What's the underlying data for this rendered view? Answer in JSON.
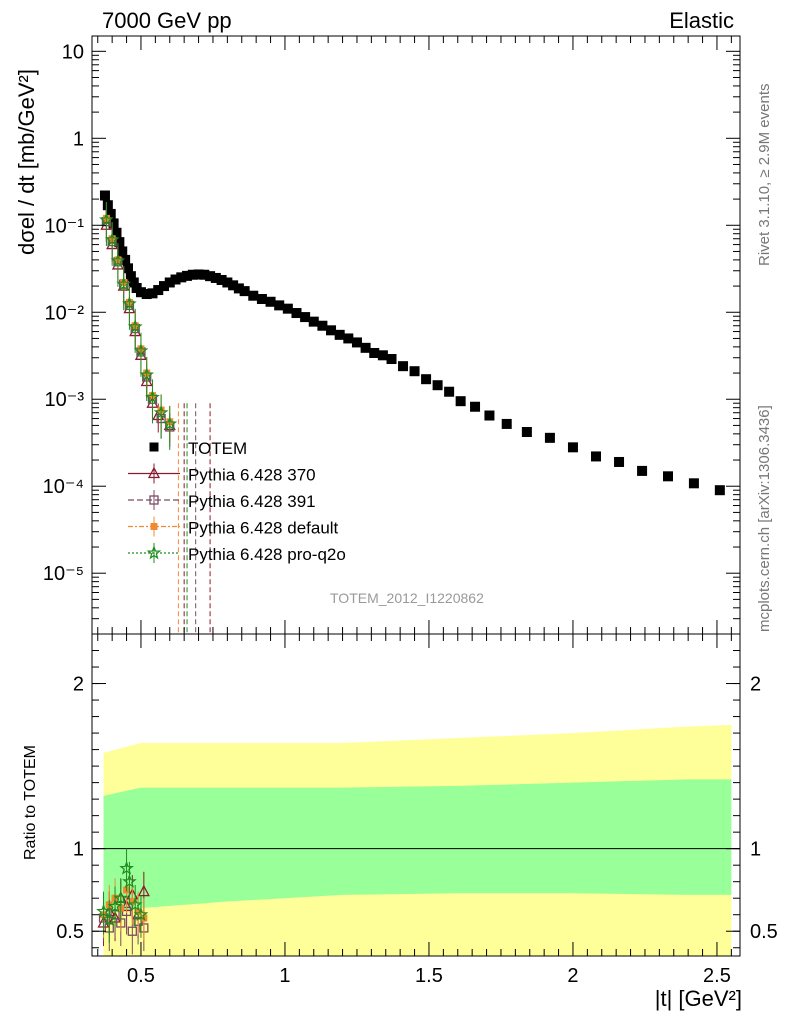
{
  "header": {
    "left": "7000 GeV pp",
    "right": "Elastic"
  },
  "side_text": {
    "rivet": "Rivet 3.1.10, ≥ 2.9M events",
    "mcplots": "mcplots.cern.ch [arXiv:1306.3436]"
  },
  "watermark": "TOTEM_2012_I1220862",
  "chart_data": [
    {
      "type": "scatter",
      "panel": "main",
      "ylabel": "dσel / dt [mb/GeV²]",
      "yscale": "log",
      "ylim": [
        2e-06,
        15
      ],
      "xlim": [
        0.33,
        2.58
      ],
      "y_tick_labels": [
        "10⁻⁵",
        "10⁻⁴",
        "10⁻³",
        "10⁻²",
        "10⁻¹",
        "1",
        "10"
      ],
      "legend_position": "center-left",
      "series": [
        {
          "name": "TOTEM",
          "color": "#000000",
          "marker": "square",
          "points": [
            [
              0.375,
              0.22
            ],
            [
              0.385,
              0.17
            ],
            [
              0.395,
              0.135
            ],
            [
              0.405,
              0.105
            ],
            [
              0.415,
              0.082
            ],
            [
              0.425,
              0.064
            ],
            [
              0.435,
              0.05
            ],
            [
              0.445,
              0.04
            ],
            [
              0.455,
              0.032
            ],
            [
              0.465,
              0.026
            ],
            [
              0.475,
              0.022
            ],
            [
              0.485,
              0.019
            ],
            [
              0.5,
              0.017
            ],
            [
              0.52,
              0.0162
            ],
            [
              0.54,
              0.0165
            ],
            [
              0.56,
              0.018
            ],
            [
              0.58,
              0.02
            ],
            [
              0.6,
              0.022
            ],
            [
              0.62,
              0.0238
            ],
            [
              0.64,
              0.0252
            ],
            [
              0.66,
              0.0262
            ],
            [
              0.68,
              0.027
            ],
            [
              0.7,
              0.0272
            ],
            [
              0.72,
              0.027
            ],
            [
              0.74,
              0.026
            ],
            [
              0.76,
              0.0248
            ],
            [
              0.78,
              0.0235
            ],
            [
              0.8,
              0.022
            ],
            [
              0.82,
              0.0204
            ],
            [
              0.84,
              0.0188
            ],
            [
              0.86,
              0.0175
            ],
            [
              0.89,
              0.0155
            ],
            [
              0.92,
              0.0142
            ],
            [
              0.95,
              0.0132
            ],
            [
              0.98,
              0.012
            ],
            [
              1.01,
              0.011
            ],
            [
              1.04,
              0.0098
            ],
            [
              1.07,
              0.0088
            ],
            [
              1.1,
              0.0078
            ],
            [
              1.13,
              0.007
            ],
            [
              1.16,
              0.0062
            ],
            [
              1.19,
              0.0055
            ],
            [
              1.22,
              0.005
            ],
            [
              1.25,
              0.0045
            ],
            [
              1.28,
              0.0039
            ],
            [
              1.31,
              0.0034
            ],
            [
              1.34,
              0.0032
            ],
            [
              1.37,
              0.0029
            ],
            [
              1.41,
              0.0024
            ],
            [
              1.45,
              0.0021
            ],
            [
              1.49,
              0.0017
            ],
            [
              1.53,
              0.00145
            ],
            [
              1.57,
              0.00122
            ],
            [
              1.61,
              0.00095
            ],
            [
              1.66,
              0.00082
            ],
            [
              1.71,
              0.00065
            ],
            [
              1.77,
              0.00052
            ],
            [
              1.84,
              0.00042
            ],
            [
              1.92,
              0.00036
            ],
            [
              2.0,
              0.00028
            ],
            [
              2.08,
              0.00022
            ],
            [
              2.16,
              0.00019
            ],
            [
              2.24,
              0.00015
            ],
            [
              2.33,
              0.00013
            ],
            [
              2.42,
              0.000108
            ],
            [
              2.51,
              9e-05
            ]
          ]
        },
        {
          "name": "Pythia 6.428 370",
          "color": "#8b1a2b",
          "marker": "triangle",
          "points": [
            [
              0.38,
              0.1
            ],
            [
              0.4,
              0.06
            ],
            [
              0.42,
              0.035
            ],
            [
              0.44,
              0.02
            ],
            [
              0.46,
              0.011
            ],
            [
              0.48,
              0.006
            ],
            [
              0.5,
              0.0032
            ],
            [
              0.52,
              0.0016
            ],
            [
              0.54,
              0.0009
            ],
            [
              0.56,
              0.00065
            ],
            [
              0.6,
              0.0005
            ]
          ]
        },
        {
          "name": "Pythia 6.428 391",
          "color": "#7b4a66",
          "marker": "open-square",
          "points": [
            [
              0.38,
              0.11
            ],
            [
              0.4,
              0.065
            ],
            [
              0.42,
              0.038
            ],
            [
              0.44,
              0.021
            ],
            [
              0.46,
              0.012
            ],
            [
              0.48,
              0.0065
            ],
            [
              0.5,
              0.0035
            ],
            [
              0.52,
              0.0018
            ],
            [
              0.54,
              0.001
            ],
            [
              0.57,
              0.0006
            ],
            [
              0.6,
              0.00048
            ]
          ]
        },
        {
          "name": "Pythia 6.428 default",
          "color": "#f08a30",
          "marker": "filled-square",
          "points": [
            [
              0.38,
              0.12
            ],
            [
              0.4,
              0.07
            ],
            [
              0.42,
              0.04
            ],
            [
              0.44,
              0.022
            ],
            [
              0.46,
              0.013
            ],
            [
              0.48,
              0.007
            ],
            [
              0.5,
              0.0038
            ],
            [
              0.52,
              0.002
            ],
            [
              0.54,
              0.0011
            ],
            [
              0.57,
              0.00075
            ],
            [
              0.6,
              0.00055
            ]
          ]
        },
        {
          "name": "Pythia 6.428 pro-q2o",
          "color": "#1e8c1e",
          "marker": "star",
          "points": [
            [
              0.38,
              0.115
            ],
            [
              0.4,
              0.068
            ],
            [
              0.42,
              0.039
            ],
            [
              0.44,
              0.021
            ],
            [
              0.46,
              0.0125
            ],
            [
              0.48,
              0.0068
            ],
            [
              0.5,
              0.0036
            ],
            [
              0.52,
              0.0019
            ],
            [
              0.54,
              0.00105
            ],
            [
              0.57,
              0.0007
            ],
            [
              0.6,
              0.00052
            ]
          ]
        }
      ]
    },
    {
      "type": "area",
      "panel": "ratio",
      "ylabel": "Ratio to TOTEM",
      "xlabel": "|t| [GeV²]",
      "xlim": [
        0.33,
        2.58
      ],
      "ylim": [
        0.35,
        2.3
      ],
      "x_tick_labels": [
        "0.5",
        "1",
        "1.5",
        "2",
        "2.5"
      ],
      "y_tick_labels": [
        "0.5",
        "1",
        "2"
      ],
      "reference_line": 1,
      "bands": [
        {
          "name": "outer",
          "color": "#ffff99",
          "x": [
            0.37,
            0.5,
            0.8,
            1.2,
            1.6,
            2.0,
            2.4,
            2.55
          ],
          "low": [
            0.35,
            0.35,
            0.35,
            0.35,
            0.35,
            0.35,
            0.35,
            0.35
          ],
          "high": [
            1.58,
            1.64,
            1.64,
            1.64,
            1.67,
            1.7,
            1.74,
            1.75
          ]
        },
        {
          "name": "inner",
          "color": "#99ff99",
          "x": [
            0.37,
            0.5,
            0.8,
            1.2,
            1.6,
            2.0,
            2.4,
            2.55
          ],
          "low": [
            0.6,
            0.64,
            0.68,
            0.72,
            0.73,
            0.73,
            0.72,
            0.72
          ],
          "high": [
            1.32,
            1.37,
            1.37,
            1.37,
            1.38,
            1.4,
            1.42,
            1.42
          ]
        }
      ],
      "series": [
        {
          "name": "Pythia 6.428 370",
          "color": "#8b1a2b",
          "marker": "triangle",
          "points": [
            [
              0.37,
              0.55
            ],
            [
              0.39,
              0.62
            ],
            [
              0.41,
              0.58
            ],
            [
              0.43,
              0.7
            ],
            [
              0.45,
              0.65
            ],
            [
              0.47,
              0.72
            ],
            [
              0.49,
              0.6
            ],
            [
              0.51,
              0.74
            ]
          ]
        },
        {
          "name": "Pythia 6.428 391",
          "color": "#7b4a66",
          "marker": "open-square",
          "points": [
            [
              0.37,
              0.58
            ],
            [
              0.39,
              0.52
            ],
            [
              0.41,
              0.6
            ],
            [
              0.43,
              0.55
            ],
            [
              0.45,
              0.62
            ],
            [
              0.47,
              0.5
            ],
            [
              0.49,
              0.56
            ],
            [
              0.51,
              0.52
            ]
          ]
        },
        {
          "name": "Pythia 6.428 default",
          "color": "#f08a30",
          "marker": "filled-square",
          "points": [
            [
              0.37,
              0.6
            ],
            [
              0.39,
              0.66
            ],
            [
              0.41,
              0.7
            ],
            [
              0.43,
              0.64
            ],
            [
              0.45,
              0.75
            ],
            [
              0.47,
              0.68
            ],
            [
              0.49,
              0.62
            ],
            [
              0.51,
              0.58
            ]
          ]
        },
        {
          "name": "Pythia 6.428 pro-q2o",
          "color": "#1e8c1e",
          "marker": "star",
          "points": [
            [
              0.37,
              0.62
            ],
            [
              0.39,
              0.57
            ],
            [
              0.41,
              0.65
            ],
            [
              0.43,
              0.7
            ],
            [
              0.45,
              0.88
            ],
            [
              0.46,
              0.8
            ],
            [
              0.48,
              0.66
            ],
            [
              0.5,
              0.6
            ]
          ]
        }
      ]
    }
  ]
}
